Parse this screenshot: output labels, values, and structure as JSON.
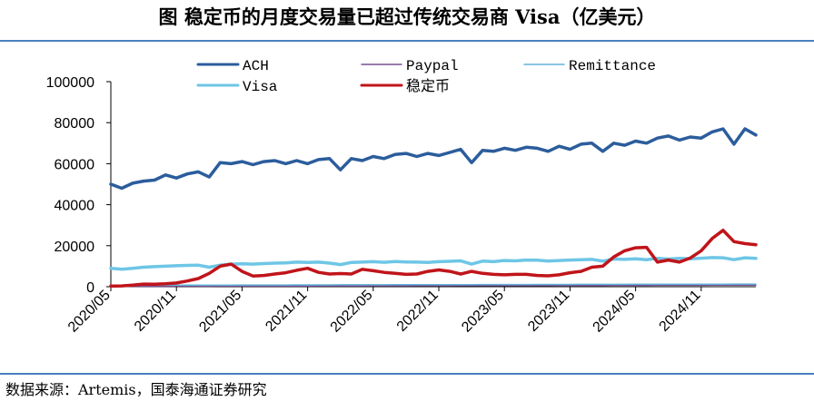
{
  "title": "图 稳定币的月度交易量已超过传统交易商 Visa（亿美元）",
  "source": "数据来源：Artemis，国泰海通证券研究",
  "chart_data": {
    "type": "line",
    "ylim": [
      0,
      100000
    ],
    "yticks": [
      "0",
      "20000",
      "40000",
      "60000",
      "80000",
      "100000"
    ],
    "xticks": [
      "2020/05",
      "2020/11",
      "2021/05",
      "2021/11",
      "2022/05",
      "2022/11",
      "2023/05",
      "2023/11",
      "2024/05",
      "2024/11"
    ],
    "legend_placement": "top",
    "series": [
      {
        "name": "ACH",
        "color": "#2b5d9c",
        "width": 3.5,
        "values": [
          50000,
          48000,
          50500,
          51500,
          52000,
          54500,
          53000,
          55000,
          56000,
          53500,
          60500,
          60000,
          61000,
          59500,
          61000,
          61500,
          60000,
          61500,
          60000,
          62000,
          62500,
          57000,
          62500,
          61500,
          63500,
          62500,
          64500,
          65000,
          63500,
          65000,
          64000,
          65500,
          67000,
          60500,
          66500,
          66000,
          67500,
          66500,
          68000,
          67500,
          66000,
          68500,
          67000,
          69500,
          70000,
          66000,
          70000,
          69000,
          71000,
          70000,
          72500,
          73500,
          71500,
          73000,
          72500,
          75500,
          77000,
          69500,
          77000,
          74000
        ]
      },
      {
        "name": "Paypal",
        "color": "#7a4f96",
        "width": 1.5,
        "values": [
          200,
          200,
          220,
          220,
          230,
          240,
          250,
          260,
          270,
          280,
          290,
          300,
          310,
          320,
          330,
          340,
          350,
          360,
          370,
          380,
          390,
          400,
          410,
          420,
          430,
          440,
          450,
          460,
          470,
          480,
          490,
          500,
          510,
          520,
          530,
          540,
          550,
          560,
          570,
          580,
          590,
          600,
          610,
          620,
          630,
          640,
          650,
          660,
          670,
          680,
          690,
          700,
          710,
          720,
          730,
          740,
          750,
          760,
          770,
          780
        ]
      },
      {
        "name": "Remittance",
        "color": "#63b3d8",
        "width": 1.5,
        "values": [
          700,
          700,
          720,
          730,
          740,
          750,
          760,
          770,
          780,
          790,
          800,
          810,
          820,
          830,
          840,
          850,
          860,
          870,
          880,
          890,
          900,
          910,
          920,
          930,
          940,
          950,
          960,
          970,
          980,
          990,
          1000,
          1010,
          1020,
          1030,
          1040,
          1050,
          1060,
          1070,
          1080,
          1090,
          1100,
          1110,
          1120,
          1130,
          1140,
          1150,
          1160,
          1170,
          1180,
          1190,
          1200,
          1210,
          1220,
          1230,
          1240,
          1250,
          1260,
          1270,
          1280,
          1290
        ]
      },
      {
        "name": "Visa",
        "color": "#6ec6e6",
        "width": 3.5,
        "values": [
          9000,
          8500,
          9000,
          9500,
          9800,
          10000,
          10200,
          10400,
          10500,
          9500,
          10500,
          11000,
          11200,
          11000,
          11300,
          11500,
          11600,
          12000,
          11800,
          12000,
          11500,
          10800,
          11800,
          12000,
          12200,
          11900,
          12300,
          12100,
          12000,
          11800,
          12200,
          12400,
          12600,
          11000,
          12500,
          12200,
          12800,
          12600,
          13000,
          12900,
          12500,
          12800,
          13000,
          13200,
          13300,
          12500,
          13500,
          13300,
          13600,
          13200,
          13800,
          13500,
          13800,
          13600,
          13900,
          14200,
          14100,
          13200,
          14100,
          13800
        ]
      },
      {
        "name": "稳定币",
        "color": "#c0141a",
        "width": 3.5,
        "values": [
          300,
          400,
          800,
          1300,
          1200,
          1400,
          1800,
          2800,
          4000,
          6500,
          10000,
          11000,
          7500,
          5200,
          5500,
          6200,
          6800,
          8000,
          9000,
          7000,
          6200,
          6400,
          6200,
          8500,
          7800,
          7000,
          6500,
          6000,
          6200,
          7500,
          8200,
          7500,
          6200,
          7500,
          6500,
          6000,
          5800,
          6000,
          6000,
          5500,
          5300,
          5800,
          6800,
          7500,
          9500,
          10000,
          14500,
          17500,
          19000,
          19200,
          12000,
          13000,
          12000,
          14000,
          17500,
          23500,
          27500,
          22000,
          21000,
          20500
        ]
      }
    ]
  }
}
